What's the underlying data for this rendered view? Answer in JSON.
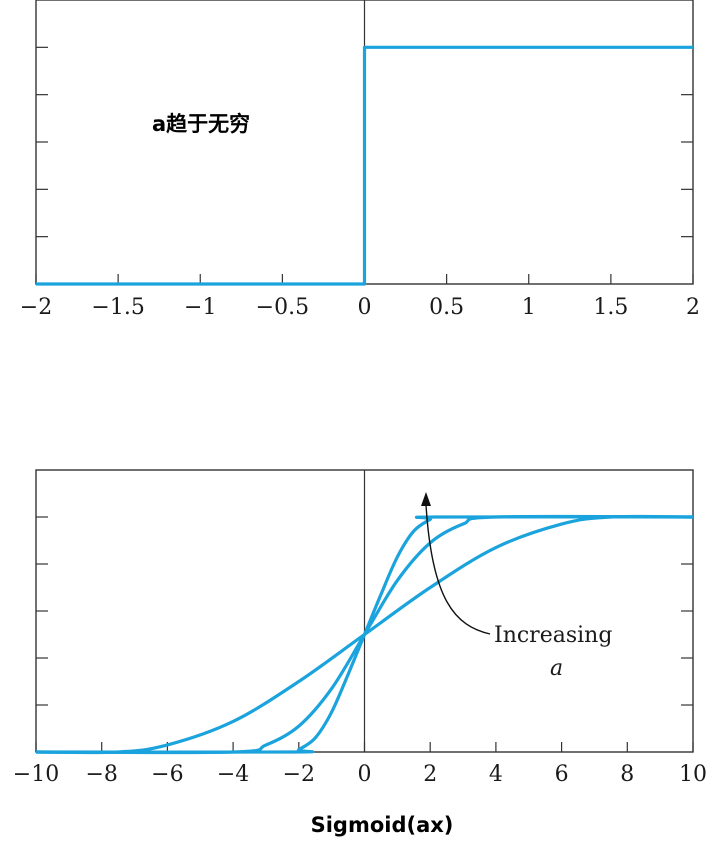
{
  "colors": {
    "curve": "#1aa3dc",
    "axis": "#333333",
    "text": "#1a1a1a"
  },
  "chart_data": [
    {
      "type": "line",
      "title": "",
      "annotation": "a趋于无穷",
      "xlabel": "",
      "ylabel": "",
      "xlim": [
        -2,
        2
      ],
      "ylim": [
        0,
        1.2
      ],
      "x_ticks": [
        -2,
        -1.5,
        -1,
        -0.5,
        0,
        0.5,
        1,
        1.5,
        2
      ],
      "x_tick_labels": [
        "−2",
        "−1.5",
        "−1",
        "−0.5",
        "0",
        "0.5",
        "1",
        "1.5",
        "2"
      ],
      "y_ticks": [
        0.2,
        0.4,
        0.6,
        0.8,
        1.0
      ],
      "series": [
        {
          "x": [
            -2,
            0,
            0,
            2
          ],
          "y": [
            0,
            0,
            1,
            1
          ]
        }
      ]
    },
    {
      "type": "line",
      "title": "",
      "xlabel": "Sigmoid(ax)",
      "ylabel": "",
      "xlim": [
        -10,
        10
      ],
      "ylim": [
        0,
        1.2
      ],
      "x_ticks": [
        -10,
        -8,
        -6,
        -4,
        -2,
        0,
        2,
        4,
        6,
        8,
        10
      ],
      "x_tick_labels": [
        "−10",
        "−8",
        "−6",
        "−4",
        "−2",
        "0",
        "2",
        "4",
        "6",
        "8",
        "10"
      ],
      "y_ticks": [
        0.2,
        0.4,
        0.6,
        0.8,
        1.0
      ],
      "series": [
        {
          "x": [
            -10,
            -2.2,
            -2,
            -1.5,
            -1,
            -0.5,
            0,
            0.5,
            1,
            1.5,
            2,
            2.2,
            10
          ],
          "y": [
            0,
            0,
            0.01,
            0.06,
            0.17,
            0.33,
            0.5,
            0.67,
            0.83,
            0.94,
            0.99,
            1,
            1
          ]
        },
        {
          "x": [
            -10,
            -4,
            -3,
            -2,
            -1,
            0,
            1,
            2,
            3,
            4,
            10
          ],
          "y": [
            0,
            0,
            0.03,
            0.11,
            0.27,
            0.5,
            0.73,
            0.89,
            0.97,
            1,
            1
          ]
        },
        {
          "x": [
            -10,
            -7.5,
            -6,
            -4,
            -2,
            0,
            2,
            4,
            6,
            7.5,
            10
          ],
          "y": [
            0,
            0,
            0.03,
            0.13,
            0.3,
            0.5,
            0.7,
            0.87,
            0.97,
            1,
            1
          ]
        }
      ],
      "annotation": {
        "line1": "Increasing",
        "line2": "a"
      }
    }
  ]
}
